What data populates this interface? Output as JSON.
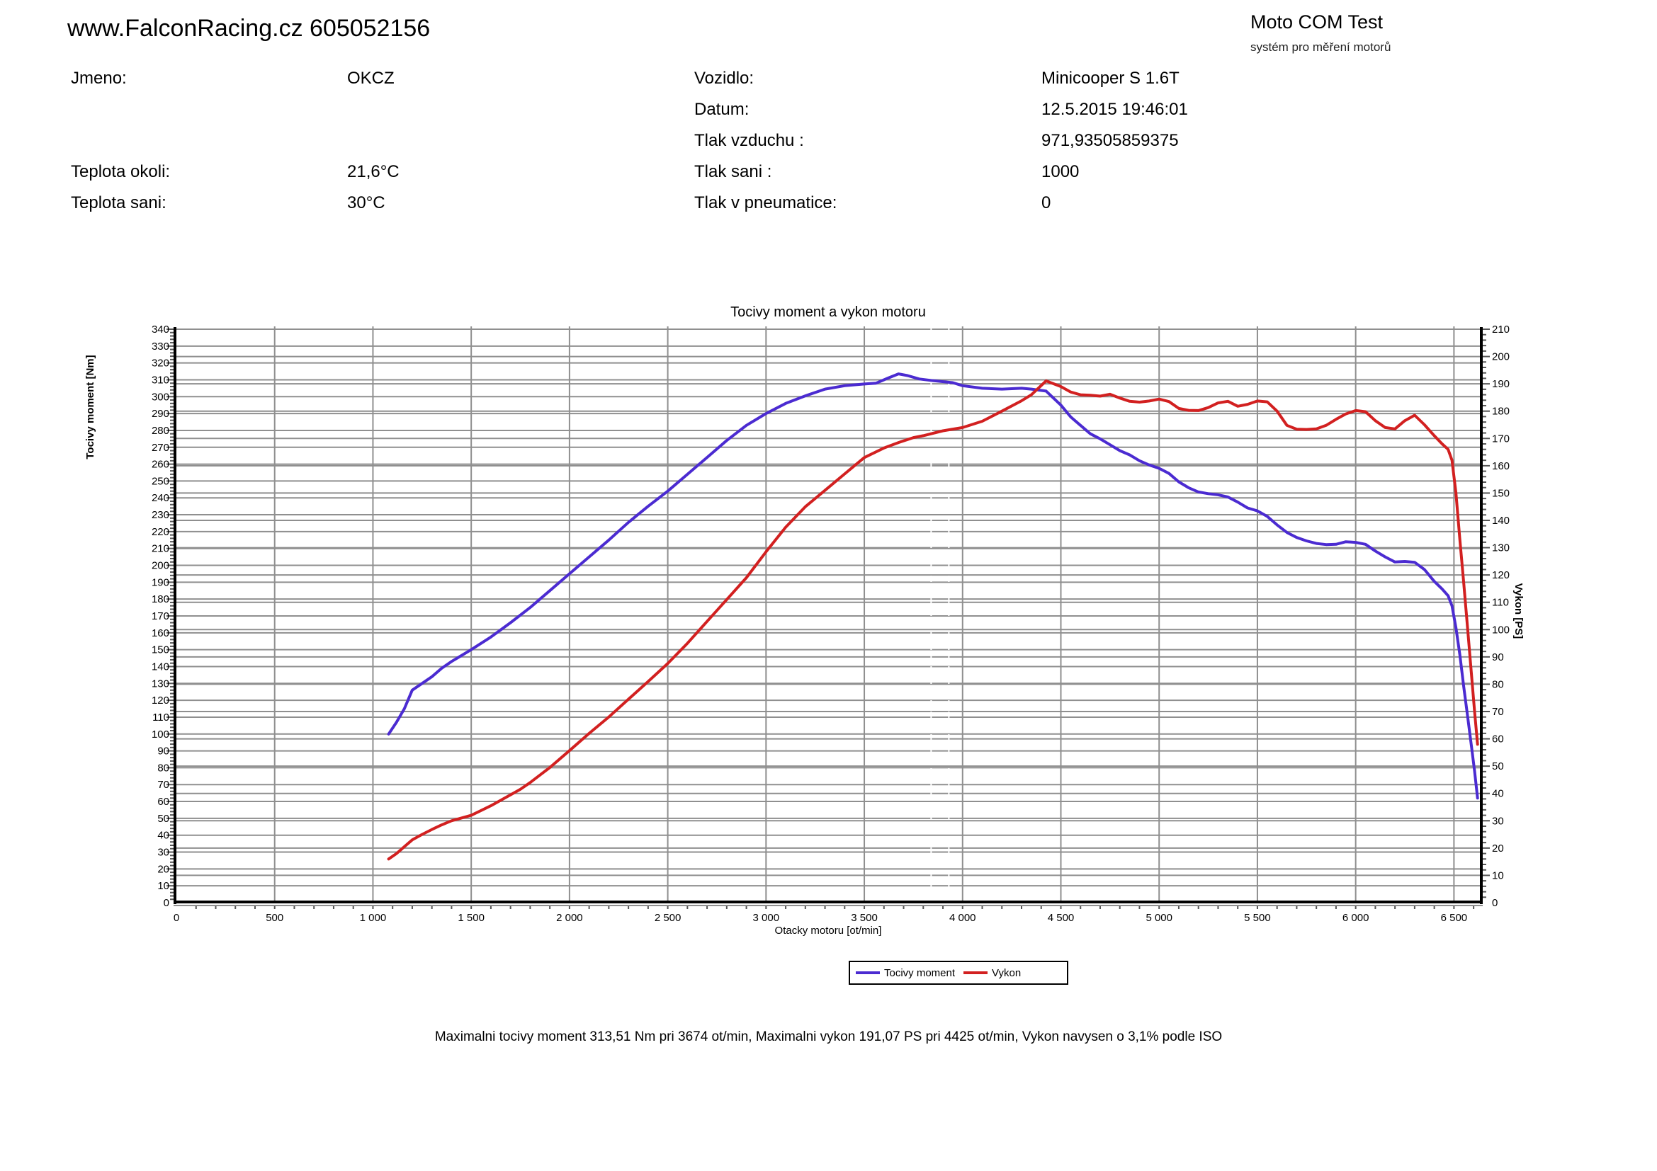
{
  "header": {
    "site_title": "www.FalconRacing.cz 605052156",
    "app_name": "Moto COM Test",
    "app_subtitle": "systém pro měření motorů"
  },
  "info": {
    "left": [
      {
        "label": "Jmeno:",
        "value": "OKCZ"
      },
      {
        "label": "Teplota okoli:",
        "value": "21,6°C"
      },
      {
        "label": "Teplota sani:",
        "value": "30°C"
      }
    ],
    "right": [
      {
        "label": "Vozidlo:",
        "value": "Minicooper S 1.6T"
      },
      {
        "label": "Datum:",
        "value": "12.5.2015 19:46:01"
      },
      {
        "label": "Tlak vzduchu :",
        "value": "971,93505859375"
      },
      {
        "label": "Tlak sani :",
        "value": "1000"
      },
      {
        "label": "Tlak v pneumatice:",
        "value": "0"
      }
    ]
  },
  "chart_data": {
    "type": "line",
    "title": "Tocivy moment a vykon motoru",
    "xlabel": "Otacky motoru [ot/min]",
    "ylabel_left": "Tocivy moment [Nm]",
    "ylabel_right": "Vykon [PS]",
    "x_range": [
      0,
      6632
    ],
    "x_tick_step": 500,
    "x_minor_tick_step": 100,
    "y_left_range": [
      0,
      340
    ],
    "y_left_tick_step": 10,
    "y_right_range": [
      0,
      210
    ],
    "y_right_tick_step": 10,
    "grid": true,
    "grid_color": "#8F8F8F",
    "cursor_lines_rpm": [
      3840,
      3930
    ],
    "legend_position": "bottom-center",
    "highlights": {
      "max_torque_nm": 313.51,
      "max_torque_rpm": 3674,
      "max_power_ps": 191.07,
      "max_power_rpm": 4425,
      "iso_correction": "3,1%"
    },
    "series": [
      {
        "name": "Tocivy moment",
        "axis": "left",
        "unit": "Nm",
        "color": "#4B2BD1",
        "points": [
          [
            1080,
            100
          ],
          [
            1120,
            107
          ],
          [
            1160,
            115
          ],
          [
            1200,
            126
          ],
          [
            1250,
            130
          ],
          [
            1300,
            134
          ],
          [
            1350,
            139
          ],
          [
            1400,
            143
          ],
          [
            1450,
            146.5
          ],
          [
            1500,
            150
          ],
          [
            1600,
            157.5
          ],
          [
            1700,
            166
          ],
          [
            1800,
            175
          ],
          [
            1900,
            185
          ],
          [
            2000,
            195
          ],
          [
            2100,
            205
          ],
          [
            2200,
            215
          ],
          [
            2300,
            225.5
          ],
          [
            2400,
            235
          ],
          [
            2500,
            244
          ],
          [
            2600,
            254
          ],
          [
            2700,
            264
          ],
          [
            2800,
            274
          ],
          [
            2900,
            283
          ],
          [
            3000,
            290
          ],
          [
            3100,
            296
          ],
          [
            3200,
            300.5
          ],
          [
            3300,
            304.5
          ],
          [
            3400,
            306.5
          ],
          [
            3500,
            307.5
          ],
          [
            3560,
            308
          ],
          [
            3620,
            311
          ],
          [
            3674,
            313.5
          ],
          [
            3720,
            312.5
          ],
          [
            3780,
            310.5
          ],
          [
            3850,
            309.5
          ],
          [
            3950,
            308.3
          ],
          [
            4000,
            306.5
          ],
          [
            4100,
            305
          ],
          [
            4200,
            304.5
          ],
          [
            4300,
            305
          ],
          [
            4350,
            304.5
          ],
          [
            4425,
            303.3
          ],
          [
            4500,
            295
          ],
          [
            4550,
            288
          ],
          [
            4600,
            283
          ],
          [
            4650,
            278
          ],
          [
            4700,
            275
          ],
          [
            4750,
            271.5
          ],
          [
            4800,
            268
          ],
          [
            4850,
            265.5
          ],
          [
            4900,
            262
          ],
          [
            4950,
            259.5
          ],
          [
            5000,
            257.5
          ],
          [
            5050,
            254.5
          ],
          [
            5100,
            249.5
          ],
          [
            5150,
            246
          ],
          [
            5200,
            243.5
          ],
          [
            5250,
            242.5
          ],
          [
            5300,
            241.8
          ],
          [
            5350,
            240.5
          ],
          [
            5400,
            237.5
          ],
          [
            5450,
            234
          ],
          [
            5500,
            232.3
          ],
          [
            5550,
            229
          ],
          [
            5600,
            224
          ],
          [
            5650,
            219.5
          ],
          [
            5700,
            216.5
          ],
          [
            5750,
            214.5
          ],
          [
            5800,
            213
          ],
          [
            5850,
            212.3
          ],
          [
            5900,
            212.5
          ],
          [
            5950,
            214
          ],
          [
            6000,
            213.6
          ],
          [
            6050,
            212.5
          ],
          [
            6100,
            208.5
          ],
          [
            6150,
            205
          ],
          [
            6200,
            202
          ],
          [
            6250,
            202.3
          ],
          [
            6300,
            201.8
          ],
          [
            6350,
            197.5
          ],
          [
            6400,
            190.5
          ],
          [
            6440,
            186
          ],
          [
            6470,
            182
          ],
          [
            6490,
            176
          ],
          [
            6510,
            163
          ],
          [
            6530,
            147
          ],
          [
            6550,
            128
          ],
          [
            6570,
            110
          ],
          [
            6590,
            92
          ],
          [
            6605,
            78
          ],
          [
            6620,
            62
          ]
        ]
      },
      {
        "name": "Vykon",
        "axis": "right",
        "unit": "PS",
        "color": "#D22020",
        "points": [
          [
            1080,
            16
          ],
          [
            1120,
            18
          ],
          [
            1160,
            20.5
          ],
          [
            1200,
            23
          ],
          [
            1250,
            25
          ],
          [
            1300,
            26.8
          ],
          [
            1350,
            28.5
          ],
          [
            1400,
            30
          ],
          [
            1450,
            31
          ],
          [
            1500,
            32
          ],
          [
            1600,
            35.5
          ],
          [
            1700,
            39.5
          ],
          [
            1750,
            41.5
          ],
          [
            1800,
            44
          ],
          [
            1900,
            49.5
          ],
          [
            2000,
            55.7
          ],
          [
            2100,
            62
          ],
          [
            2200,
            68
          ],
          [
            2300,
            74.5
          ],
          [
            2400,
            81
          ],
          [
            2500,
            87.6
          ],
          [
            2600,
            95
          ],
          [
            2700,
            103
          ],
          [
            2800,
            111
          ],
          [
            2900,
            119
          ],
          [
            3000,
            128.5
          ],
          [
            3100,
            137.5
          ],
          [
            3200,
            145
          ],
          [
            3300,
            151
          ],
          [
            3400,
            157
          ],
          [
            3500,
            163
          ],
          [
            3600,
            166.5
          ],
          [
            3674,
            168.5
          ],
          [
            3750,
            170.3
          ],
          [
            3800,
            171
          ],
          [
            3900,
            172.8
          ],
          [
            4000,
            174
          ],
          [
            4100,
            176.3
          ],
          [
            4200,
            180
          ],
          [
            4300,
            183.8
          ],
          [
            4350,
            186
          ],
          [
            4425,
            191.07
          ],
          [
            4500,
            189
          ],
          [
            4550,
            187
          ],
          [
            4600,
            186
          ],
          [
            4650,
            185.8
          ],
          [
            4700,
            185.5
          ],
          [
            4750,
            186.2
          ],
          [
            4800,
            184.8
          ],
          [
            4850,
            183.6
          ],
          [
            4900,
            183.3
          ],
          [
            4950,
            183.7
          ],
          [
            5000,
            184.4
          ],
          [
            5050,
            183.5
          ],
          [
            5100,
            181
          ],
          [
            5150,
            180.3
          ],
          [
            5200,
            180.2
          ],
          [
            5250,
            181.3
          ],
          [
            5300,
            183
          ],
          [
            5350,
            183.6
          ],
          [
            5400,
            181.8
          ],
          [
            5450,
            182.5
          ],
          [
            5500,
            183.7
          ],
          [
            5550,
            183.4
          ],
          [
            5600,
            180
          ],
          [
            5650,
            174.8
          ],
          [
            5700,
            173.4
          ],
          [
            5750,
            173.3
          ],
          [
            5800,
            173.5
          ],
          [
            5850,
            174.8
          ],
          [
            5900,
            177
          ],
          [
            5950,
            179
          ],
          [
            6000,
            180.2
          ],
          [
            6050,
            179.8
          ],
          [
            6100,
            176.5
          ],
          [
            6150,
            174
          ],
          [
            6200,
            173.5
          ],
          [
            6250,
            176.5
          ],
          [
            6300,
            178.5
          ],
          [
            6350,
            175
          ],
          [
            6400,
            171
          ],
          [
            6440,
            168
          ],
          [
            6470,
            166
          ],
          [
            6490,
            162
          ],
          [
            6510,
            150
          ],
          [
            6530,
            133
          ],
          [
            6550,
            117
          ],
          [
            6570,
            100
          ],
          [
            6590,
            83
          ],
          [
            6605,
            70
          ],
          [
            6620,
            58
          ]
        ]
      }
    ]
  },
  "footer": {
    "summary": "Maximalni tocivy moment 313,51 Nm pri 3674 ot/min,  Maximalni vykon 191,07 PS pri 4425 ot/min,  Vykon navysen o 3,1% podle ISO"
  }
}
